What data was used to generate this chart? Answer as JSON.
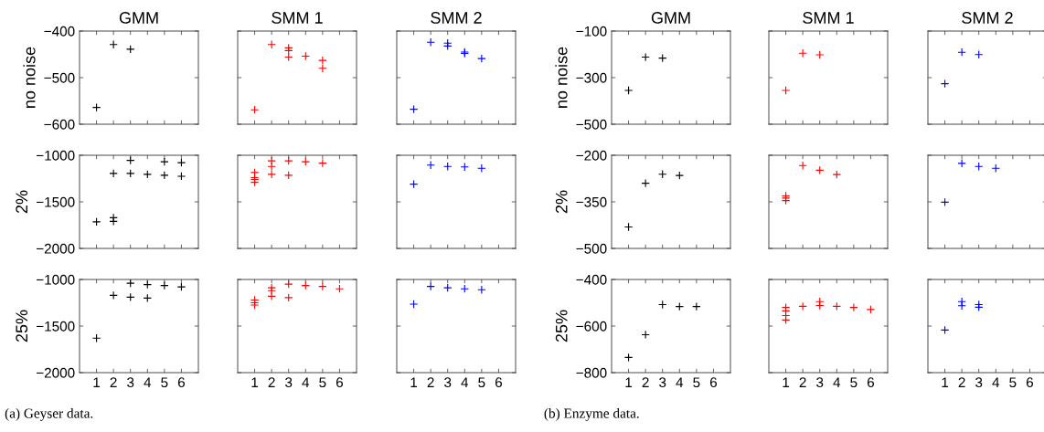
{
  "chart_data": [
    {
      "type": "scatter",
      "title": "GMM",
      "ylabel": "no noise",
      "marker": "cross",
      "tick_labels": "y",
      "xlim": [
        0,
        7
      ],
      "xticks": [
        1,
        2,
        3,
        4,
        5,
        6
      ],
      "ylim": [
        -600,
        -400
      ],
      "yticks": [
        -600,
        -500,
        -400
      ],
      "series": [
        {
          "color": "#000000",
          "x": [
            1,
            2,
            3
          ],
          "values": [
            -564,
            -429,
            -439
          ]
        }
      ]
    },
    {
      "type": "scatter",
      "title": "SMM 1",
      "marker": "cross",
      "tick_labels": false,
      "xlim": [
        0,
        7
      ],
      "xticks": [
        1,
        2,
        3,
        4,
        5,
        6
      ],
      "ylim": [
        -600,
        -400
      ],
      "yticks": [
        -600,
        -500,
        -400
      ],
      "series": [
        {
          "color": "#ff0000",
          "x": [
            1,
            2,
            3,
            3,
            3,
            4,
            5,
            5
          ],
          "values": [
            -569,
            -429,
            -436,
            -442,
            -456,
            -454,
            -463,
            -480
          ]
        }
      ]
    },
    {
      "type": "scatter",
      "title": "SMM 2",
      "marker": "cross",
      "tick_labels": false,
      "xlim": [
        0,
        7
      ],
      "xticks": [
        1,
        2,
        3,
        4,
        5,
        6
      ],
      "ylim": [
        -600,
        -400
      ],
      "yticks": [
        -600,
        -500,
        -400
      ],
      "series": [
        {
          "color": "#0000ff",
          "x": [
            1,
            2,
            3,
            3,
            4,
            4,
            5
          ],
          "values": [
            -568,
            -424,
            -426,
            -432,
            -445,
            -448,
            -459
          ]
        }
      ]
    },
    {
      "type": "scatter",
      "ylabel": "2%",
      "marker": "cross",
      "tick_labels": "y",
      "xlim": [
        0,
        7
      ],
      "xticks": [
        1,
        2,
        3,
        4,
        5,
        6
      ],
      "ylim": [
        -2000,
        -1000
      ],
      "yticks": [
        -2000,
        -1500,
        -1000
      ],
      "series": [
        {
          "color": "#000000",
          "x": [
            1,
            2,
            2,
            2,
            3,
            3,
            4,
            5,
            5,
            6,
            6
          ],
          "values": [
            -1715,
            -1670,
            -1710,
            -1195,
            -1055,
            -1195,
            -1205,
            -1070,
            -1215,
            -1080,
            -1225
          ]
        }
      ]
    },
    {
      "type": "scatter",
      "marker": "cross",
      "tick_labels": false,
      "xlim": [
        0,
        7
      ],
      "xticks": [
        1,
        2,
        3,
        4,
        5,
        6
      ],
      "ylim": [
        -2000,
        -1000
      ],
      "yticks": [
        -2000,
        -1500,
        -1000
      ],
      "series": [
        {
          "color": "#ff0000",
          "x": [
            1,
            1,
            1,
            1,
            2,
            2,
            2,
            3,
            3,
            4,
            5
          ],
          "values": [
            -1185,
            -1240,
            -1260,
            -1290,
            -1060,
            -1120,
            -1205,
            -1060,
            -1215,
            -1070,
            -1085
          ]
        }
      ]
    },
    {
      "type": "scatter",
      "marker": "cross",
      "tick_labels": false,
      "xlim": [
        0,
        7
      ],
      "xticks": [
        1,
        2,
        3,
        4,
        5,
        6
      ],
      "ylim": [
        -2000,
        -1000
      ],
      "yticks": [
        -2000,
        -1500,
        -1000
      ],
      "series": [
        {
          "color": "#0000ff",
          "x": [
            1,
            2,
            3,
            4,
            5
          ],
          "values": [
            -1310,
            -1105,
            -1120,
            -1125,
            -1140
          ]
        }
      ]
    },
    {
      "type": "scatter",
      "ylabel": "25%",
      "marker": "cross",
      "xlim": [
        0,
        7
      ],
      "xticks": [
        1,
        2,
        3,
        4,
        5,
        6
      ],
      "ylim": [
        -2000,
        -1000
      ],
      "yticks": [
        -2000,
        -1500,
        -1000
      ],
      "annotations": [
        "(a) Geyser data."
      ],
      "series": [
        {
          "color": "#000000",
          "x": [
            1,
            2,
            3,
            3,
            4,
            4,
            5,
            6
          ],
          "values": [
            -1630,
            -1170,
            -1040,
            -1190,
            -1055,
            -1200,
            -1065,
            -1080
          ]
        }
      ]
    },
    {
      "type": "scatter",
      "marker": "cross",
      "tick_labels": "x",
      "xlim": [
        0,
        7
      ],
      "xticks": [
        1,
        2,
        3,
        4,
        5,
        6
      ],
      "ylim": [
        -2000,
        -1000
      ],
      "yticks": [
        -2000,
        -1500,
        -1000
      ],
      "series": [
        {
          "color": "#ff0000",
          "x": [
            1,
            1,
            1,
            2,
            2,
            2,
            3,
            3,
            4,
            5,
            6
          ],
          "values": [
            -1220,
            -1250,
            -1275,
            -1090,
            -1120,
            -1180,
            -1050,
            -1195,
            -1065,
            -1075,
            -1100
          ]
        }
      ]
    },
    {
      "type": "scatter",
      "marker": "cross",
      "tick_labels": "x",
      "xlim": [
        0,
        7
      ],
      "xticks": [
        1,
        2,
        3,
        4,
        5,
        6
      ],
      "ylim": [
        -2000,
        -1000
      ],
      "yticks": [
        -2000,
        -1500,
        -1000
      ],
      "series": [
        {
          "color": "#0000ff",
          "x": [
            1,
            2,
            3,
            4,
            5
          ],
          "values": [
            -1265,
            -1075,
            -1090,
            -1100,
            -1110
          ]
        }
      ]
    },
    {
      "type": "scatter",
      "title": "GMM",
      "ylabel": "no noise",
      "marker": "cross",
      "tick_labels": "y",
      "xlim": [
        0,
        7
      ],
      "xticks": [
        1,
        2,
        3,
        4,
        5,
        6
      ],
      "ylim": [
        -500,
        -100
      ],
      "yticks": [
        -500,
        -300,
        -100
      ],
      "series": [
        {
          "color": "#000000",
          "x": [
            1,
            2,
            3
          ],
          "values": [
            -355,
            -212,
            -216
          ]
        }
      ]
    },
    {
      "type": "scatter",
      "title": "SMM 1",
      "marker": "cross",
      "tick_labels": false,
      "xlim": [
        0,
        7
      ],
      "xticks": [
        1,
        2,
        3,
        4,
        5,
        6
      ],
      "ylim": [
        -500,
        -100
      ],
      "yticks": [
        -500,
        -300,
        -100
      ],
      "series": [
        {
          "color": "#ff0000",
          "x": [
            1,
            2,
            3
          ],
          "values": [
            -355,
            -195,
            -202
          ]
        }
      ]
    },
    {
      "type": "scatter",
      "title": "SMM 2",
      "marker": "cross",
      "tick_labels": false,
      "xlim": [
        0,
        7
      ],
      "xticks": [
        1,
        2,
        3,
        4,
        5,
        6
      ],
      "ylim": [
        -500,
        -100
      ],
      "yticks": [
        -500,
        -300,
        -100
      ],
      "series": [
        {
          "color": "#0000ff",
          "x": [
            1,
            2,
            3
          ],
          "values": [
            -326,
            -191,
            -201
          ]
        }
      ]
    },
    {
      "type": "scatter",
      "ylabel": "2%",
      "marker": "cross",
      "tick_labels": "y",
      "xlim": [
        0,
        7
      ],
      "xticks": [
        1,
        2,
        3,
        4,
        5,
        6
      ],
      "ylim": [
        -500,
        -200
      ],
      "yticks": [
        -500,
        -350,
        -200
      ],
      "series": [
        {
          "color": "#000000",
          "x": [
            1,
            2,
            3,
            4
          ],
          "values": [
            -431,
            -290,
            -261,
            -265
          ]
        }
      ]
    },
    {
      "type": "scatter",
      "marker": "cross",
      "tick_labels": false,
      "xlim": [
        0,
        7
      ],
      "xticks": [
        1,
        2,
        3,
        4,
        5,
        6
      ],
      "ylim": [
        -500,
        -200
      ],
      "yticks": [
        -500,
        -350,
        -200
      ],
      "series": [
        {
          "color": "#ff0000",
          "x": [
            1,
            1,
            1,
            2,
            3,
            4
          ],
          "values": [
            -331,
            -338,
            -346,
            -233,
            -248,
            -262
          ]
        }
      ]
    },
    {
      "type": "scatter",
      "marker": "cross",
      "tick_labels": false,
      "xlim": [
        0,
        7
      ],
      "xticks": [
        1,
        2,
        3,
        4,
        5,
        6
      ],
      "ylim": [
        -500,
        -200
      ],
      "yticks": [
        -500,
        -350,
        -200
      ],
      "series": [
        {
          "color": "#0000ff",
          "x": [
            1,
            2,
            3,
            4
          ],
          "values": [
            -351,
            -226,
            -236,
            -242
          ]
        }
      ]
    },
    {
      "type": "scatter",
      "ylabel": "25%",
      "marker": "cross",
      "xlim": [
        0,
        7
      ],
      "xticks": [
        1,
        2,
        3,
        4,
        5,
        6
      ],
      "ylim": [
        -800,
        -400
      ],
      "yticks": [
        -800,
        -600,
        -400
      ],
      "annotations": [
        "(b) Enzyme data."
      ],
      "series": [
        {
          "color": "#000000",
          "x": [
            1,
            2,
            3,
            4,
            5
          ],
          "values": [
            -735,
            -637,
            -508,
            -516,
            -516
          ]
        }
      ]
    },
    {
      "type": "scatter",
      "marker": "cross",
      "tick_labels": "x",
      "xlim": [
        0,
        7
      ],
      "xticks": [
        1,
        2,
        3,
        4,
        5,
        6
      ],
      "ylim": [
        -800,
        -400
      ],
      "yticks": [
        -800,
        -600,
        -400
      ],
      "series": [
        {
          "color": "#ff0000",
          "x": [
            1,
            1,
            1,
            1,
            2,
            3,
            3,
            4,
            5,
            6
          ],
          "values": [
            -520,
            -535,
            -555,
            -574,
            -515,
            -495,
            -512,
            -515,
            -520,
            -529
          ]
        }
      ]
    },
    {
      "type": "scatter",
      "marker": "cross",
      "tick_labels": "x",
      "xlim": [
        0,
        7
      ],
      "xticks": [
        1,
        2,
        3,
        4,
        5,
        6
      ],
      "ylim": [
        -800,
        -400
      ],
      "yticks": [
        -800,
        -600,
        -400
      ],
      "series": [
        {
          "color": "#0000ff",
          "x": [
            1,
            2,
            2,
            3,
            3
          ],
          "values": [
            -617,
            -495,
            -513,
            -508,
            -519
          ]
        }
      ]
    }
  ]
}
